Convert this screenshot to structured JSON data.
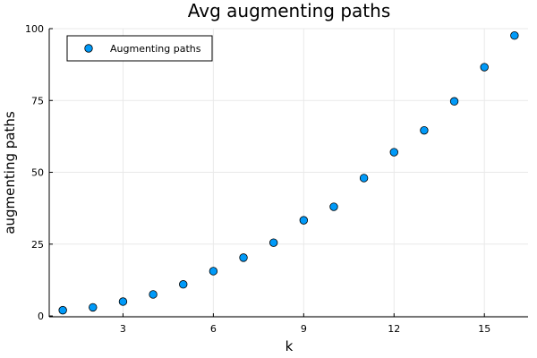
{
  "chart_data": {
    "type": "scatter",
    "title": "Avg augmenting paths",
    "xlabel": "k",
    "ylabel": "augmenting paths",
    "xlim": [
      0.55,
      16.45
    ],
    "ylim": [
      -0.3,
      100
    ],
    "xticks": [
      3,
      6,
      9,
      12,
      15
    ],
    "yticks": [
      0,
      25,
      50,
      75,
      100
    ],
    "grid": true,
    "legend_position": "top-left",
    "marker_color": "#009AF9",
    "series": [
      {
        "name": "Augmenting paths",
        "x": [
          1,
          2,
          3,
          4,
          5,
          6,
          7,
          8,
          9,
          10,
          11,
          12,
          13,
          14,
          15,
          16
        ],
        "y": [
          2.0,
          3.0,
          5.0,
          7.5,
          11.0,
          15.6,
          20.3,
          25.5,
          33.3,
          38.0,
          48.0,
          57.0,
          64.6,
          74.7,
          86.6,
          97.6
        ]
      }
    ]
  }
}
